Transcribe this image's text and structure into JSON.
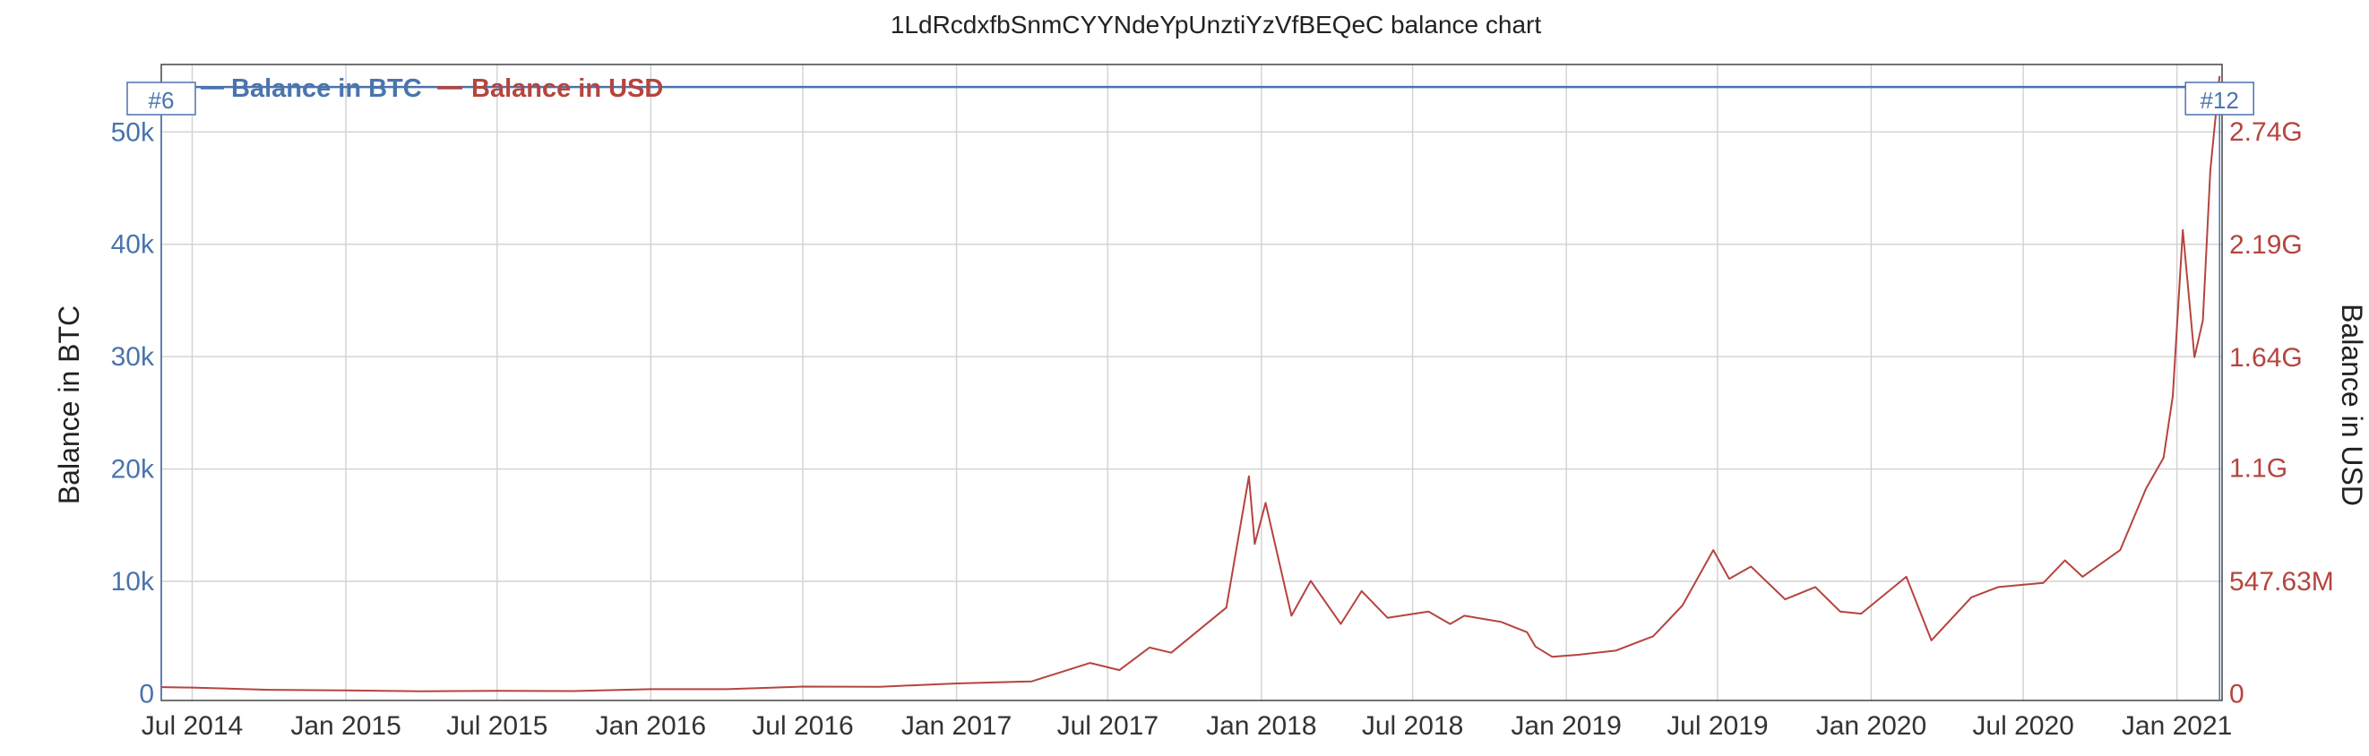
{
  "colors": {
    "btc": "#4a74ad",
    "usd": "#b5443f",
    "grid": "#d4d4d4"
  },
  "chart_data": {
    "type": "line",
    "title": "1LdRcdxfbSnmCYYNdeYpUnztiYzVfBEQeC balance chart",
    "ylabel": "Balance in BTC",
    "y2label": "Balance in USD",
    "legend_position": "top-left",
    "grid": true,
    "x_ticks": [
      "Jul 2014",
      "Jan 2015",
      "Jul 2015",
      "Jan 2016",
      "Jul 2016",
      "Jan 2017",
      "Jul 2017",
      "Jan 2018",
      "Jul 2018",
      "Jan 2019",
      "Jul 2019",
      "Jan 2020",
      "Jul 2020",
      "Jan 2021"
    ],
    "y_ticks": [
      "0",
      "10k",
      "20k",
      "30k",
      "40k",
      "50k"
    ],
    "y2_ticks": [
      "0",
      "547.63M",
      "1.1G",
      "1.64G",
      "2.19G",
      "2.74G"
    ],
    "xlim": [
      "2014-05-25",
      "2021-02-24"
    ],
    "ylim": [
      -600,
      56000
    ],
    "y2lim": [
      -32864000,
      3066728000
    ],
    "markers": [
      {
        "label": "#6",
        "x": "2014-05-25"
      },
      {
        "label": "#12",
        "x": "2021-02-21"
      }
    ],
    "series": [
      {
        "name": "Balance in BTC",
        "axis": "left",
        "points": [
          [
            "2014-05-25",
            54000
          ],
          [
            "2021-02-21",
            54000
          ]
        ]
      },
      {
        "name": "Balance in USD",
        "axis": "right",
        "points": [
          [
            "2014-05-25",
            32000000
          ],
          [
            "2014-07-01",
            30000000
          ],
          [
            "2014-10-01",
            19000000
          ],
          [
            "2015-01-01",
            16000000
          ],
          [
            "2015-04-01",
            12000000
          ],
          [
            "2015-07-01",
            14000000
          ],
          [
            "2015-10-01",
            13000000
          ],
          [
            "2016-01-01",
            22000000
          ],
          [
            "2016-04-01",
            22000000
          ],
          [
            "2016-07-01",
            35000000
          ],
          [
            "2016-10-01",
            34000000
          ],
          [
            "2017-01-01",
            50000000
          ],
          [
            "2017-04-01",
            60000000
          ],
          [
            "2017-06-10",
            150000000
          ],
          [
            "2017-07-15",
            115000000
          ],
          [
            "2017-08-20",
            225000000
          ],
          [
            "2017-09-15",
            200000000
          ],
          [
            "2017-10-15",
            300000000
          ],
          [
            "2017-11-20",
            420000000
          ],
          [
            "2017-12-17",
            1060000000
          ],
          [
            "2017-12-24",
            730000000
          ],
          [
            "2018-01-06",
            930000000
          ],
          [
            "2018-02-06",
            380000000
          ],
          [
            "2018-03-01",
            550000000
          ],
          [
            "2018-04-06",
            340000000
          ],
          [
            "2018-05-01",
            500000000
          ],
          [
            "2018-06-01",
            370000000
          ],
          [
            "2018-07-20",
            400000000
          ],
          [
            "2018-08-15",
            340000000
          ],
          [
            "2018-09-01",
            380000000
          ],
          [
            "2018-10-15",
            350000000
          ],
          [
            "2018-11-15",
            300000000
          ],
          [
            "2018-11-25",
            230000000
          ],
          [
            "2018-12-15",
            180000000
          ],
          [
            "2019-01-15",
            190000000
          ],
          [
            "2019-03-01",
            210000000
          ],
          [
            "2019-04-15",
            280000000
          ],
          [
            "2019-05-20",
            430000000
          ],
          [
            "2019-06-26",
            700000000
          ],
          [
            "2019-07-15",
            560000000
          ],
          [
            "2019-08-10",
            620000000
          ],
          [
            "2019-09-20",
            460000000
          ],
          [
            "2019-10-26",
            520000000
          ],
          [
            "2019-11-25",
            400000000
          ],
          [
            "2019-12-20",
            390000000
          ],
          [
            "2020-02-12",
            570000000
          ],
          [
            "2020-03-13",
            260000000
          ],
          [
            "2020-04-30",
            470000000
          ],
          [
            "2020-06-01",
            520000000
          ],
          [
            "2020-07-25",
            540000000
          ],
          [
            "2020-08-20",
            650000000
          ],
          [
            "2020-09-10",
            570000000
          ],
          [
            "2020-10-25",
            700000000
          ],
          [
            "2020-11-25",
            1000000000
          ],
          [
            "2020-12-16",
            1150000000
          ],
          [
            "2020-12-27",
            1450000000
          ],
          [
            "2021-01-08",
            2260000000
          ],
          [
            "2021-01-22",
            1640000000
          ],
          [
            "2021-02-01",
            1820000000
          ],
          [
            "2021-02-10",
            2550000000
          ],
          [
            "2021-02-21",
            3010000000
          ]
        ]
      }
    ]
  }
}
